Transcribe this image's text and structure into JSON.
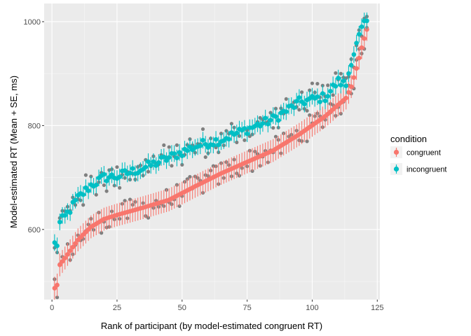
{
  "chart_data": {
    "type": "scatter",
    "title": "",
    "xlabel": "Rank of participant (by model-estimated congruent RT)",
    "ylabel": "Model-estimated RT (Mean + SE, ms)",
    "xlim": [
      -3,
      126
    ],
    "ylim": [
      465,
      1035
    ],
    "x_ticks": [
      0,
      25,
      50,
      75,
      100,
      125
    ],
    "y_ticks": [
      600,
      800,
      1000
    ],
    "grid": true,
    "legend": {
      "title": "condition",
      "position": "right",
      "entries": [
        {
          "label": "congruent",
          "color": "#F8766D"
        },
        {
          "label": "incongruent",
          "color": "#00BFC4"
        }
      ]
    },
    "raw_points_color": "#7f7f7f",
    "participants": 121,
    "curve_anchors": {
      "congruent": {
        "rank": [
          1,
          2,
          3,
          5,
          10,
          15,
          20,
          25,
          35,
          45,
          55,
          65,
          75,
          85,
          95,
          105,
          110,
          113,
          115,
          117,
          119,
          121
        ],
        "rt": [
          487,
          493,
          532,
          545,
          580,
          605,
          620,
          628,
          642,
          657,
          683,
          708,
          730,
          752,
          783,
          818,
          840,
          853,
          875,
          910,
          950,
          985
        ]
      },
      "incongruent": {
        "rank": [
          1,
          2,
          3,
          5,
          10,
          15,
          20,
          25,
          35,
          45,
          55,
          65,
          75,
          85,
          95,
          105,
          110,
          113,
          115,
          117,
          119,
          121
        ],
        "rt": [
          572,
          572,
          612,
          624,
          660,
          685,
          700,
          702,
          718,
          738,
          760,
          773,
          793,
          812,
          845,
          855,
          885,
          878,
          925,
          955,
          985,
          1000
        ]
      },
      "se": {
        "congruent": 22,
        "incongruent": 16
      }
    }
  }
}
